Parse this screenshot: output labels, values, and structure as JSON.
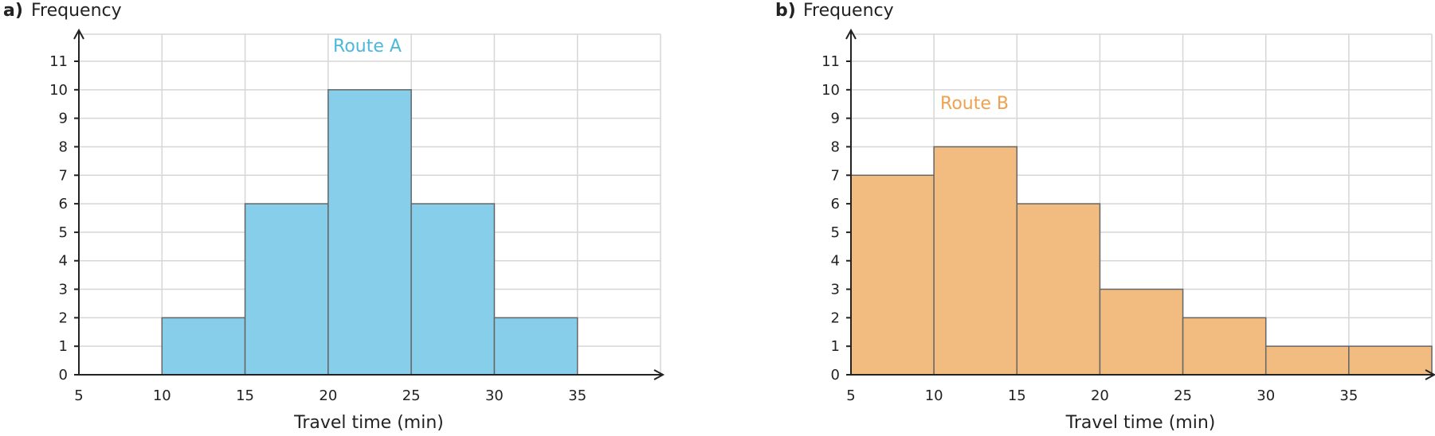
{
  "chart_data": [
    {
      "type": "bar",
      "panel_label": "a)",
      "ylabel": "Frequency",
      "xlabel": "Travel time (min)",
      "series": [
        {
          "name": "Route A",
          "color": "#87CEEB",
          "label_color": "#4DB8D8",
          "bins": [
            {
              "from": 5,
              "to": 10,
              "value": 0
            },
            {
              "from": 10,
              "to": 15,
              "value": 2
            },
            {
              "from": 15,
              "to": 20,
              "value": 6
            },
            {
              "from": 20,
              "to": 25,
              "value": 10
            },
            {
              "from": 25,
              "to": 30,
              "value": 6
            },
            {
              "from": 30,
              "to": 35,
              "value": 2
            }
          ]
        }
      ],
      "x_ticks": [
        5,
        10,
        15,
        20,
        25,
        30,
        35
      ],
      "y_ticks": [
        0,
        1,
        2,
        3,
        4,
        5,
        6,
        7,
        8,
        9,
        10,
        11
      ],
      "xlim": [
        5,
        40
      ],
      "ylim": [
        0,
        12
      ],
      "grid": true
    },
    {
      "type": "bar",
      "panel_label": "b)",
      "ylabel": "Frequency",
      "xlabel": "Travel time (min)",
      "series": [
        {
          "name": "Route B",
          "color": "#F2BC80",
          "label_color": "#EFA150",
          "bins": [
            {
              "from": 5,
              "to": 10,
              "value": 7
            },
            {
              "from": 10,
              "to": 15,
              "value": 8
            },
            {
              "from": 15,
              "to": 20,
              "value": 6
            },
            {
              "from": 20,
              "to": 25,
              "value": 3
            },
            {
              "from": 25,
              "to": 30,
              "value": 2
            },
            {
              "from": 30,
              "to": 35,
              "value": 1
            },
            {
              "from": 35,
              "to": 40,
              "value": 1
            }
          ]
        }
      ],
      "x_ticks": [
        5,
        10,
        15,
        20,
        25,
        30,
        35
      ],
      "y_ticks": [
        0,
        1,
        2,
        3,
        4,
        5,
        6,
        7,
        8,
        9,
        10,
        11
      ],
      "xlim": [
        5,
        40
      ],
      "ylim": [
        0,
        12
      ],
      "grid": true
    }
  ]
}
